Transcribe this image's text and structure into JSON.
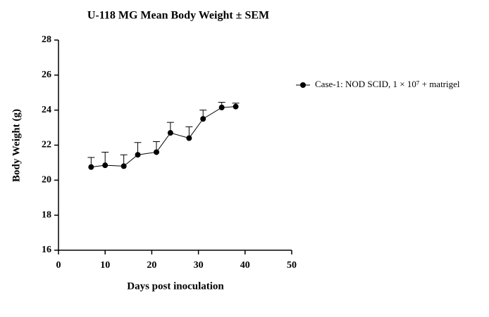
{
  "chart_data": {
    "type": "line",
    "title": "U-118 MG Mean Body Weight ± SEM",
    "xlabel": "Days post inoculation",
    "ylabel": "Body Weight (g)",
    "x": [
      7,
      10,
      14,
      17,
      21,
      24,
      28,
      31,
      35,
      38
    ],
    "series": [
      {
        "name": "Case-1: NOD SCID, 1 × 10⁷ + matrigel",
        "color": "#000000",
        "values": [
          20.75,
          20.85,
          20.8,
          21.45,
          21.6,
          22.7,
          22.4,
          23.5,
          24.15,
          24.2
        ],
        "errors": [
          0.55,
          0.75,
          0.65,
          0.7,
          0.6,
          0.6,
          0.65,
          0.5,
          0.3,
          0.2
        ]
      }
    ],
    "xlim": [
      0,
      50
    ],
    "xticks": [
      0,
      10,
      20,
      30,
      40,
      50
    ],
    "ylim": [
      16,
      28
    ],
    "yticks": [
      16,
      18,
      20,
      22,
      24,
      26,
      28
    ],
    "grid": false,
    "legend": "right"
  }
}
